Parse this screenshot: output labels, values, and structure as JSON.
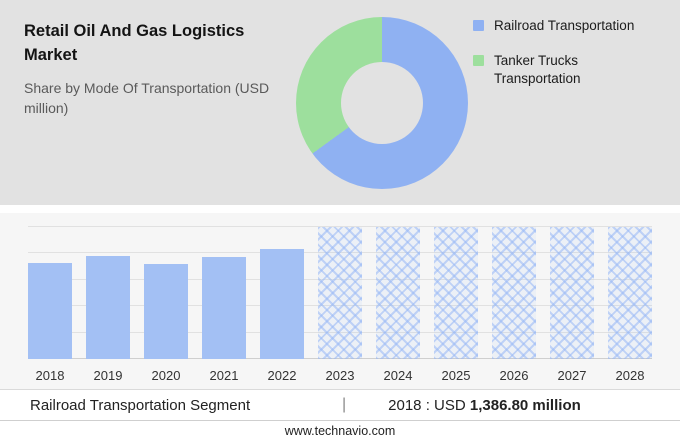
{
  "header": {
    "title": "Retail Oil And Gas Logistics Market",
    "subtitle": "Share by Mode Of Transportation (USD million)"
  },
  "legend": {
    "items": [
      {
        "label": "Railroad Transportation",
        "color": "#8fb1f2"
      },
      {
        "label": "Tanker Trucks Transportation",
        "color": "#9ddf9d"
      }
    ]
  },
  "chart_data": [
    {
      "type": "pie",
      "donut": true,
      "title": "Share by Mode Of Transportation (USD million)",
      "labels": [
        "Railroad Transportation",
        "Tanker Trucks Transportation"
      ],
      "values": [
        65,
        35
      ],
      "unit": "percent (estimated from arc angles)",
      "colors": [
        "#8fb1f2",
        "#9ddf9d"
      ],
      "legend_position": "right",
      "hole_color": "#e2e2e2"
    },
    {
      "type": "bar",
      "title": "Railroad Transportation Segment (USD million)",
      "categories": [
        "2018",
        "2019",
        "2020",
        "2021",
        "2022",
        "2023",
        "2024",
        "2025",
        "2026",
        "2027",
        "2028"
      ],
      "values": [
        1386.8,
        1480,
        1370,
        1460,
        1560,
        null,
        null,
        null,
        null,
        null,
        null
      ],
      "relative_heights": [
        0.73,
        0.78,
        0.72,
        0.77,
        0.83,
        1,
        1,
        1,
        1,
        1,
        1
      ],
      "forecast_start_index": 5,
      "forecast_style": "crosshatch",
      "bar_color": "#a3c0f4",
      "grid": true,
      "gridline_count": 6,
      "known_labeled_value": {
        "year": "2018",
        "value_usd_million": 1386.8
      }
    }
  ],
  "footer": {
    "segment": "Railroad Transportation Segment",
    "separator": "|",
    "value_prefix": "2018 : USD",
    "value_bold": "1,386.80 million",
    "website": "www.technavio.com"
  }
}
